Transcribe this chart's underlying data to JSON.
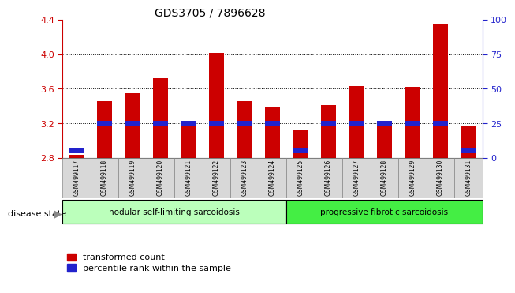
{
  "title": "GDS3705 / 7896628",
  "samples": [
    "GSM499117",
    "GSM499118",
    "GSM499119",
    "GSM499120",
    "GSM499121",
    "GSM499122",
    "GSM499123",
    "GSM499124",
    "GSM499125",
    "GSM499126",
    "GSM499127",
    "GSM499128",
    "GSM499129",
    "GSM499130",
    "GSM499131"
  ],
  "red_values": [
    2.84,
    3.46,
    3.55,
    3.72,
    3.18,
    4.01,
    3.46,
    3.38,
    3.13,
    3.41,
    3.63,
    3.21,
    3.62,
    4.35,
    3.17
  ],
  "blue_percentile": [
    5,
    25,
    25,
    25,
    25,
    25,
    25,
    25,
    5,
    25,
    25,
    25,
    25,
    25,
    5
  ],
  "ylim_left": [
    2.8,
    4.4
  ],
  "ylim_right": [
    0,
    100
  ],
  "yticks_left": [
    2.8,
    3.2,
    3.6,
    4.0,
    4.4
  ],
  "yticks_right": [
    0,
    25,
    50,
    75,
    100
  ],
  "baseline": 2.8,
  "group1_label": "nodular self-limiting sarcoidosis",
  "group2_label": "progressive fibrotic sarcoidosis",
  "group1_count": 8,
  "group2_count": 7,
  "group1_color": "#bbffbb",
  "group2_color": "#44ee44",
  "bar_width": 0.55,
  "red_color": "#cc0000",
  "blue_color": "#2222cc",
  "legend_red": "transformed count",
  "legend_blue": "percentile rank within the sample",
  "disease_state_label": "disease state",
  "tick_color_left": "#cc0000",
  "tick_color_right": "#2222cc",
  "blue_bar_height": 0.055
}
